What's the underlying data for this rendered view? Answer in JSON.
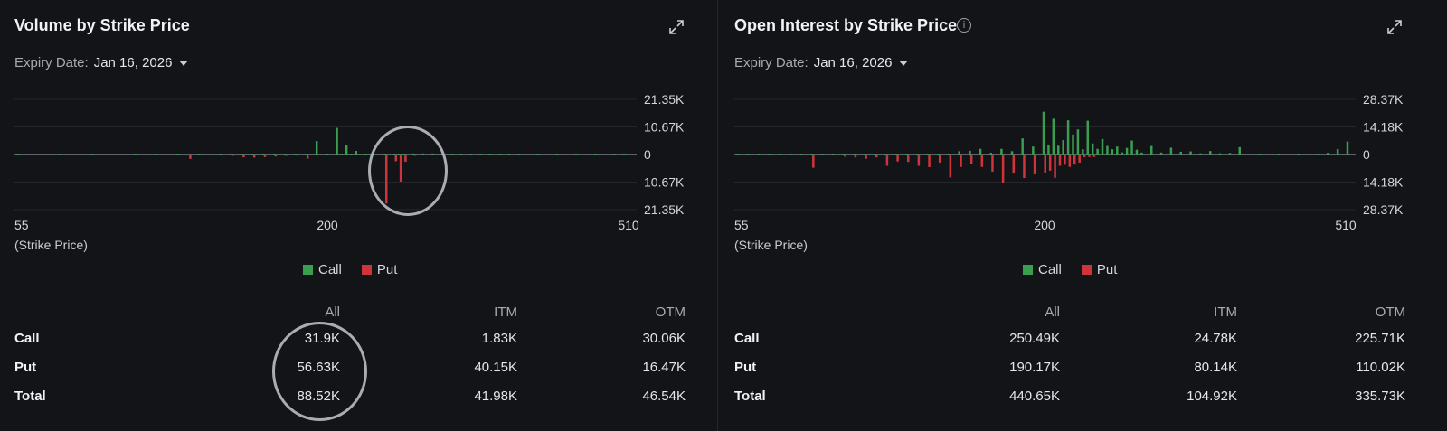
{
  "colors": {
    "call": "#3a9d50",
    "put": "#d0343b",
    "grid": "#24262b",
    "baseline": "#8e949b"
  },
  "icons": {
    "expand": "expand-icon",
    "info": "info-icon"
  },
  "panels": [
    {
      "title": "Volume by Strike Price",
      "expiry_label": "Expiry Date:",
      "expiry_value": "Jan 16, 2026",
      "legend": {
        "call": "Call",
        "put": "Put"
      },
      "x_note": "(Strike Price)",
      "table": {
        "headers": [
          "",
          "All",
          "ITM",
          "OTM"
        ],
        "rows": [
          [
            "Call",
            "31.9K",
            "1.83K",
            "30.06K"
          ],
          [
            "Put",
            "56.63K",
            "40.15K",
            "16.47K"
          ],
          [
            "Total",
            "88.52K",
            "41.98K",
            "46.54K"
          ]
        ]
      }
    },
    {
      "title": "Open Interest by Strike Price",
      "expiry_label": "Expiry Date:",
      "expiry_value": "Jan 16, 2026",
      "legend": {
        "call": "Call",
        "put": "Put"
      },
      "x_note": "(Strike Price)",
      "table": {
        "headers": [
          "",
          "All",
          "ITM",
          "OTM"
        ],
        "rows": [
          [
            "Call",
            "250.49K",
            "24.78K",
            "225.71K"
          ],
          [
            "Put",
            "190.17K",
            "80.14K",
            "110.02K"
          ],
          [
            "Total",
            "440.65K",
            "104.92K",
            "335.73K"
          ]
        ]
      }
    }
  ],
  "chart_data": [
    {
      "type": "bar",
      "title": "Volume by Strike Price",
      "xlabel": "(Strike Price)",
      "x_ticks": [
        "55",
        "200",
        "510"
      ],
      "y_ticks": [
        "21.35K",
        "10.67K",
        "0",
        "10.67K",
        "21.35K"
      ],
      "ylim": [
        -21350,
        21350
      ],
      "series": [
        {
          "name": "Call",
          "values": [
            300,
            0,
            0,
            0,
            0,
            0,
            250,
            0,
            200,
            0,
            0,
            150,
            0,
            0,
            250,
            0,
            0,
            0,
            0,
            0,
            0,
            0,
            0,
            0,
            0,
            0,
            0,
            150,
            0,
            0,
            0,
            0,
            0,
            0,
            0,
            0,
            0,
            0,
            0,
            0,
            0,
            0,
            0,
            0,
            0,
            0,
            0,
            0,
            0,
            0,
            0,
            0,
            0,
            0,
            0,
            0,
            0,
            0,
            0,
            0,
            0,
            0,
            0,
            0,
            0,
            0,
            0,
            0,
            0,
            0,
            0,
            0,
            0,
            0,
            0,
            0,
            0,
            0,
            0,
            0,
            0,
            0,
            0,
            0,
            0,
            0,
            0,
            0,
            0,
            0,
            0,
            0,
            0,
            0,
            0,
            0,
            0,
            0,
            0,
            0,
            0,
            0,
            0,
            0,
            0,
            0,
            0,
            0,
            0,
            0,
            0,
            0,
            0,
            0,
            0,
            0,
            0,
            0,
            0,
            0,
            0,
            0,
            0,
            0,
            0,
            0,
            0,
            0,
            0,
            0,
            0,
            0,
            0,
            0,
            0,
            0,
            0,
            0,
            0,
            0,
            0,
            0,
            0,
            0,
            0,
            0,
            0,
            0,
            0,
            0,
            0,
            0,
            0,
            0,
            0,
            0,
            0,
            0,
            0,
            0,
            0,
            0,
            0,
            0,
            0,
            0,
            0,
            0,
            0,
            0,
            0,
            0,
            0,
            0,
            0,
            0,
            0,
            0,
            0,
            0,
            0,
            0,
            0,
            0,
            0,
            0,
            0,
            0,
            0,
            0,
            0,
            0,
            0,
            0,
            0,
            0,
            0,
            0,
            0,
            0,
            0,
            0,
            0,
            0,
            0,
            0,
            0,
            0,
            0,
            0,
            0,
            0
          ]
        },
        {
          "name": "Put",
          "values": []
        }
      ]
    },
    {
      "type": "bar",
      "title": "Open Interest by Strike Price",
      "xlabel": "(Strike Price)",
      "x_ticks": [
        "55",
        "200",
        "510"
      ],
      "y_ticks": [
        "28.37K",
        "14.18K",
        "0",
        "14.18K",
        "28.37K"
      ],
      "ylim": [
        -28370,
        28370
      ]
    }
  ]
}
